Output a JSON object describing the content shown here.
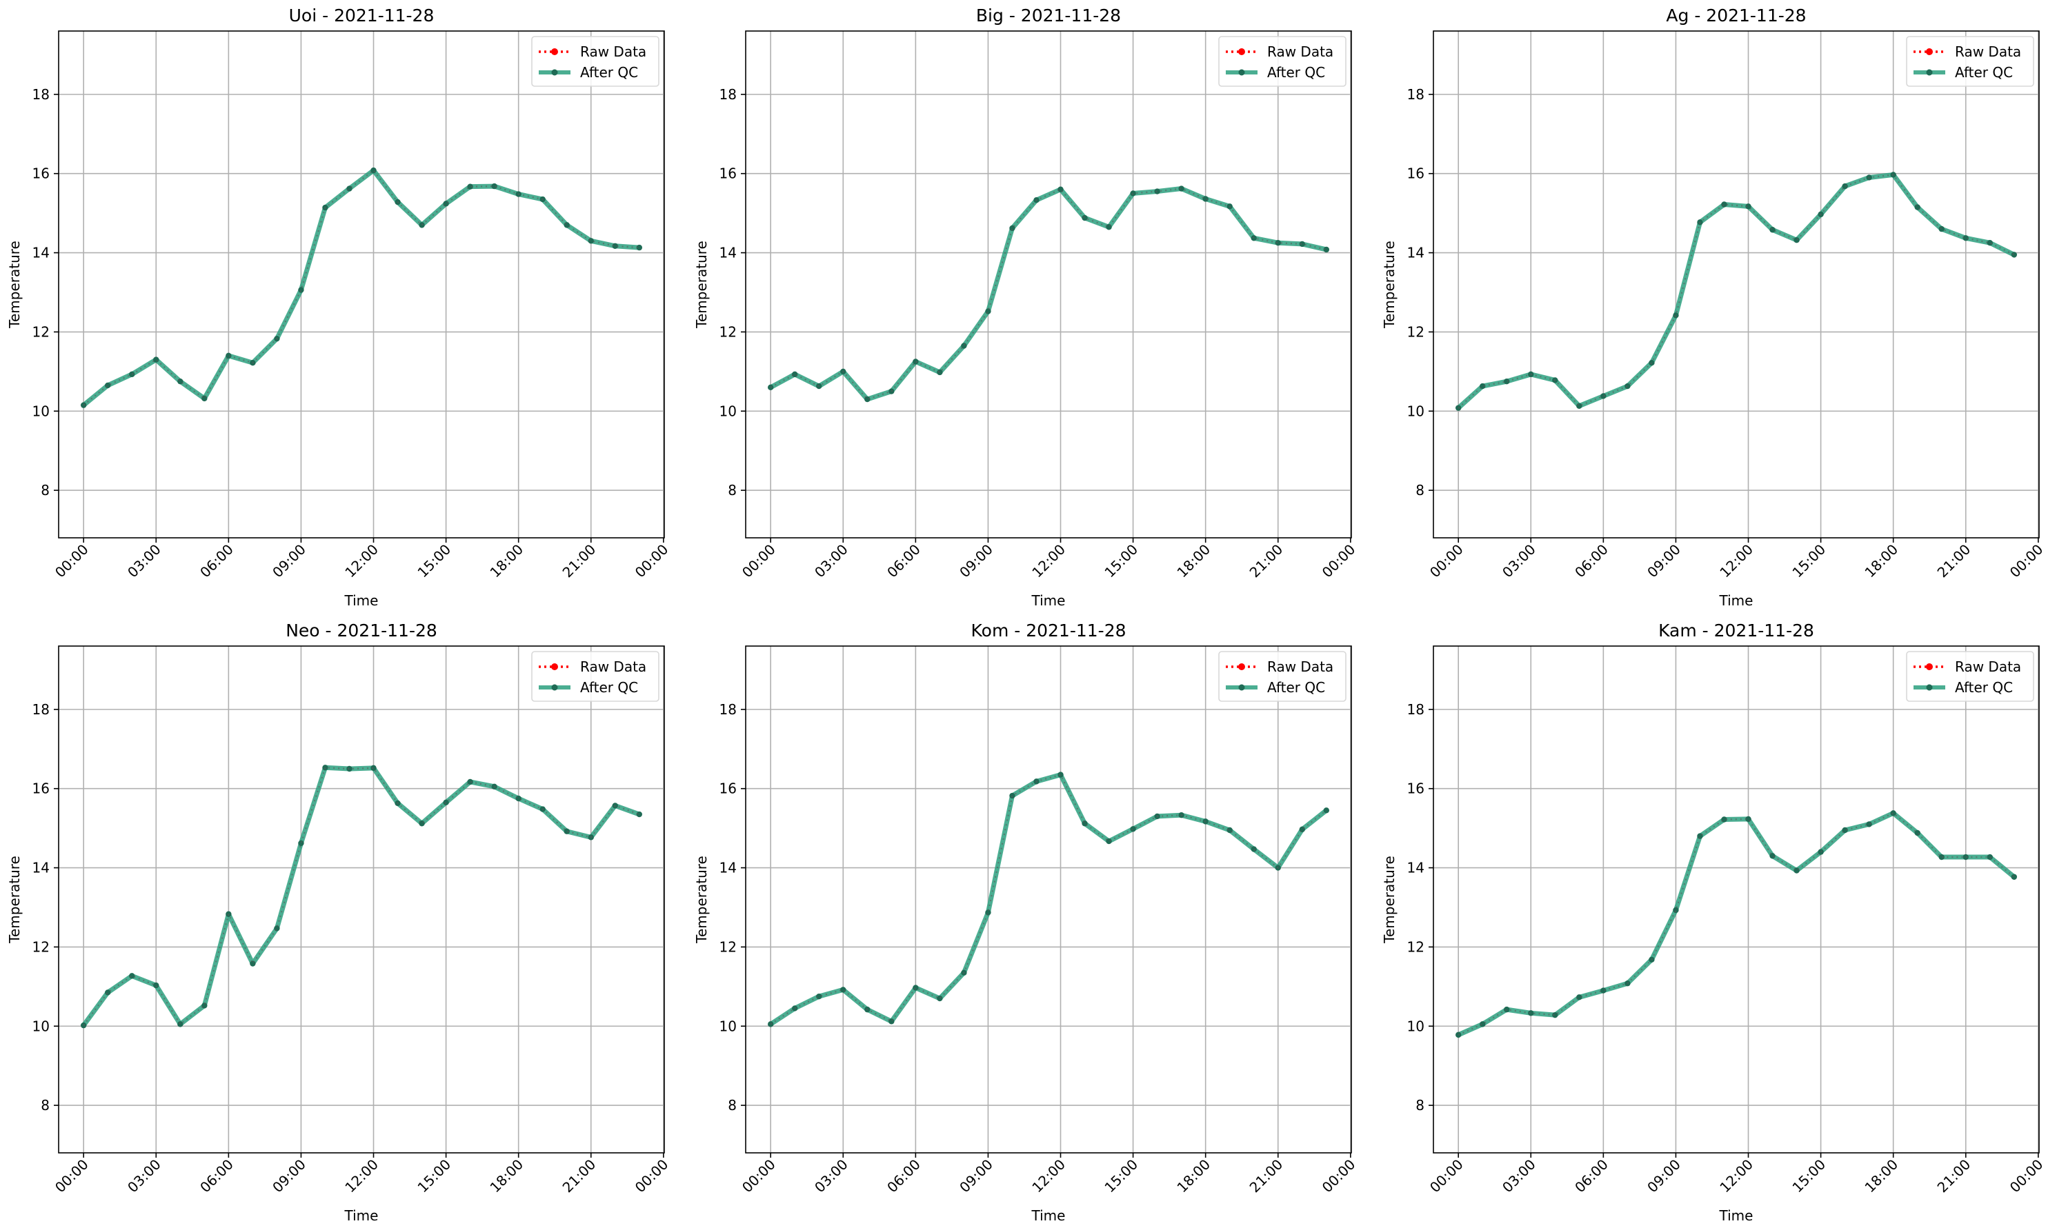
{
  "chart_data": [
    {
      "type": "line",
      "title": "Uoi - 2021-11-28",
      "xlabel": "Time",
      "ylabel": "Temperature",
      "ylim": [
        6.8,
        19.6
      ],
      "grid": true,
      "legend": "top-right",
      "yticks": [
        8,
        10,
        12,
        14,
        16,
        18
      ],
      "xticks": [
        "00:00",
        "03:00",
        "06:00",
        "09:00",
        "12:00",
        "15:00",
        "18:00",
        "21:00",
        "00:00"
      ],
      "x": [
        "00:00",
        "01:00",
        "02:00",
        "03:00",
        "04:00",
        "05:00",
        "06:00",
        "07:00",
        "08:00",
        "09:00",
        "10:00",
        "11:00",
        "12:00",
        "13:00",
        "14:00",
        "15:00",
        "16:00",
        "17:00",
        "18:00",
        "19:00",
        "20:00",
        "21:00",
        "22:00",
        "23:00"
      ],
      "series": [
        {
          "name": "Raw Data",
          "color": "#ff0000",
          "values": [
            10.15,
            10.65,
            10.93,
            11.3,
            10.75,
            10.32,
            11.4,
            11.22,
            11.83,
            13.06,
            15.14,
            15.62,
            16.08,
            15.28,
            14.7,
            15.24,
            15.67,
            15.68,
            15.48,
            15.35,
            14.7,
            14.3,
            14.17,
            14.13
          ]
        },
        {
          "name": "After QC",
          "color": "#2ca07f",
          "values": [
            10.15,
            10.65,
            10.93,
            11.3,
            10.75,
            10.32,
            11.4,
            11.22,
            11.83,
            13.06,
            15.14,
            15.62,
            16.08,
            15.28,
            14.7,
            15.24,
            15.67,
            15.68,
            15.48,
            15.35,
            14.7,
            14.3,
            14.17,
            14.13
          ]
        }
      ]
    },
    {
      "type": "line",
      "title": "Big - 2021-11-28",
      "xlabel": "Time",
      "ylabel": "Temperature",
      "ylim": [
        6.8,
        19.6
      ],
      "grid": true,
      "legend": "top-right",
      "yticks": [
        8,
        10,
        12,
        14,
        16,
        18
      ],
      "xticks": [
        "00:00",
        "03:00",
        "06:00",
        "09:00",
        "12:00",
        "15:00",
        "18:00",
        "21:00",
        "00:00"
      ],
      "x": [
        "00:00",
        "01:00",
        "02:00",
        "03:00",
        "04:00",
        "05:00",
        "06:00",
        "07:00",
        "08:00",
        "09:00",
        "10:00",
        "11:00",
        "12:00",
        "13:00",
        "14:00",
        "15:00",
        "16:00",
        "17:00",
        "18:00",
        "19:00",
        "20:00",
        "21:00",
        "22:00",
        "23:00"
      ],
      "series": [
        {
          "name": "Raw Data",
          "color": "#ff0000",
          "values": [
            10.6,
            10.93,
            10.63,
            11.0,
            10.3,
            10.5,
            11.25,
            10.98,
            11.65,
            12.52,
            14.62,
            15.33,
            15.6,
            14.88,
            14.65,
            15.5,
            15.55,
            15.62,
            15.36,
            15.17,
            14.37,
            14.25,
            14.22,
            14.08
          ]
        },
        {
          "name": "After QC",
          "color": "#2ca07f",
          "values": [
            10.6,
            10.93,
            10.63,
            11.0,
            10.3,
            10.5,
            11.25,
            10.98,
            11.65,
            12.52,
            14.62,
            15.33,
            15.6,
            14.88,
            14.65,
            15.5,
            15.55,
            15.62,
            15.36,
            15.17,
            14.37,
            14.25,
            14.22,
            14.08
          ]
        }
      ]
    },
    {
      "type": "line",
      "title": "Ag - 2021-11-28",
      "xlabel": "Time",
      "ylabel": "Temperature",
      "ylim": [
        6.8,
        19.6
      ],
      "grid": true,
      "legend": "top-right",
      "yticks": [
        8,
        10,
        12,
        14,
        16,
        18
      ],
      "xticks": [
        "00:00",
        "03:00",
        "06:00",
        "09:00",
        "12:00",
        "15:00",
        "18:00",
        "21:00",
        "00:00"
      ],
      "x": [
        "00:00",
        "01:00",
        "02:00",
        "03:00",
        "04:00",
        "05:00",
        "06:00",
        "07:00",
        "08:00",
        "09:00",
        "10:00",
        "11:00",
        "12:00",
        "13:00",
        "14:00",
        "15:00",
        "16:00",
        "17:00",
        "18:00",
        "19:00",
        "20:00",
        "21:00",
        "22:00",
        "23:00"
      ],
      "series": [
        {
          "name": "Raw Data",
          "color": "#ff0000",
          "values": [
            10.08,
            10.63,
            10.75,
            10.93,
            10.78,
            10.13,
            10.38,
            10.63,
            11.22,
            12.42,
            14.77,
            15.22,
            15.17,
            14.58,
            14.32,
            14.97,
            15.68,
            15.9,
            15.97,
            15.15,
            14.6,
            14.37,
            14.25,
            13.95
          ]
        },
        {
          "name": "After QC",
          "color": "#2ca07f",
          "values": [
            10.08,
            10.63,
            10.75,
            10.93,
            10.78,
            10.13,
            10.38,
            10.63,
            11.22,
            12.42,
            14.77,
            15.22,
            15.17,
            14.58,
            14.32,
            14.97,
            15.68,
            15.9,
            15.97,
            15.15,
            14.6,
            14.37,
            14.25,
            13.95
          ]
        }
      ]
    },
    {
      "type": "line",
      "title": "Neo - 2021-11-28",
      "xlabel": "Time",
      "ylabel": "Temperature",
      "ylim": [
        6.8,
        19.6
      ],
      "grid": true,
      "legend": "top-right",
      "yticks": [
        8,
        10,
        12,
        14,
        16,
        18
      ],
      "xticks": [
        "00:00",
        "03:00",
        "06:00",
        "09:00",
        "12:00",
        "15:00",
        "18:00",
        "21:00",
        "00:00"
      ],
      "x": [
        "00:00",
        "01:00",
        "02:00",
        "03:00",
        "04:00",
        "05:00",
        "06:00",
        "07:00",
        "08:00",
        "09:00",
        "10:00",
        "11:00",
        "12:00",
        "13:00",
        "14:00",
        "15:00",
        "16:00",
        "17:00",
        "18:00",
        "19:00",
        "20:00",
        "21:00",
        "22:00",
        "23:00"
      ],
      "series": [
        {
          "name": "Raw Data",
          "color": "#ff0000",
          "values": [
            10.02,
            10.85,
            11.27,
            11.03,
            10.05,
            10.52,
            12.83,
            11.58,
            12.47,
            14.62,
            16.53,
            16.5,
            16.52,
            15.63,
            15.12,
            15.65,
            16.17,
            16.05,
            15.75,
            15.48,
            14.92,
            14.77,
            15.57,
            15.35
          ]
        },
        {
          "name": "After QC",
          "color": "#2ca07f",
          "values": [
            10.02,
            10.85,
            11.27,
            11.03,
            10.05,
            10.52,
            12.83,
            11.58,
            12.47,
            14.62,
            16.53,
            16.5,
            16.52,
            15.63,
            15.12,
            15.65,
            16.17,
            16.05,
            15.75,
            15.48,
            14.92,
            14.77,
            15.57,
            15.35
          ]
        }
      ]
    },
    {
      "type": "line",
      "title": "Kom - 2021-11-28",
      "xlabel": "Time",
      "ylabel": "Temperature",
      "ylim": [
        6.8,
        19.6
      ],
      "grid": true,
      "legend": "top-right",
      "yticks": [
        8,
        10,
        12,
        14,
        16,
        18
      ],
      "xticks": [
        "00:00",
        "03:00",
        "06:00",
        "09:00",
        "12:00",
        "15:00",
        "18:00",
        "21:00",
        "00:00"
      ],
      "x": [
        "00:00",
        "01:00",
        "02:00",
        "03:00",
        "04:00",
        "05:00",
        "06:00",
        "07:00",
        "08:00",
        "09:00",
        "10:00",
        "11:00",
        "12:00",
        "13:00",
        "14:00",
        "15:00",
        "16:00",
        "17:00",
        "18:00",
        "19:00",
        "20:00",
        "21:00",
        "22:00",
        "23:00"
      ],
      "series": [
        {
          "name": "Raw Data",
          "color": "#ff0000",
          "values": [
            10.05,
            10.45,
            10.75,
            10.92,
            10.42,
            10.12,
            10.97,
            10.7,
            11.35,
            12.87,
            15.82,
            16.18,
            16.35,
            15.12,
            14.67,
            14.98,
            15.3,
            15.33,
            15.17,
            14.95,
            14.47,
            14.0,
            14.97,
            15.45
          ]
        },
        {
          "name": "After QC",
          "color": "#2ca07f",
          "values": [
            10.05,
            10.45,
            10.75,
            10.92,
            10.42,
            10.12,
            10.97,
            10.7,
            11.35,
            12.87,
            15.82,
            16.18,
            16.35,
            15.12,
            14.67,
            14.98,
            15.3,
            15.33,
            15.17,
            14.95,
            14.47,
            14.0,
            14.97,
            15.45
          ]
        }
      ]
    },
    {
      "type": "line",
      "title": "Kam - 2021-11-28",
      "xlabel": "Time",
      "ylabel": "Temperature",
      "ylim": [
        6.8,
        19.6
      ],
      "grid": true,
      "legend": "top-right",
      "yticks": [
        8,
        10,
        12,
        14,
        16,
        18
      ],
      "xticks": [
        "00:00",
        "03:00",
        "06:00",
        "09:00",
        "12:00",
        "15:00",
        "18:00",
        "21:00",
        "00:00"
      ],
      "x": [
        "00:00",
        "01:00",
        "02:00",
        "03:00",
        "04:00",
        "05:00",
        "06:00",
        "07:00",
        "08:00",
        "09:00",
        "10:00",
        "11:00",
        "12:00",
        "13:00",
        "14:00",
        "15:00",
        "16:00",
        "17:00",
        "18:00",
        "19:00",
        "20:00",
        "21:00",
        "22:00",
        "23:00"
      ],
      "series": [
        {
          "name": "Raw Data",
          "color": "#ff0000",
          "values": [
            9.78,
            10.05,
            10.42,
            10.33,
            10.28,
            10.73,
            10.9,
            11.08,
            11.68,
            12.93,
            14.8,
            15.22,
            15.23,
            14.3,
            13.93,
            14.4,
            14.95,
            15.1,
            15.38,
            14.88,
            14.27,
            14.27,
            14.27,
            13.77
          ]
        },
        {
          "name": "After QC",
          "color": "#2ca07f",
          "values": [
            9.78,
            10.05,
            10.42,
            10.33,
            10.28,
            10.73,
            10.9,
            11.08,
            11.68,
            12.93,
            14.8,
            15.22,
            15.23,
            14.3,
            13.93,
            14.4,
            14.95,
            15.1,
            15.38,
            14.88,
            14.27,
            14.27,
            14.27,
            13.77
          ]
        }
      ]
    }
  ]
}
